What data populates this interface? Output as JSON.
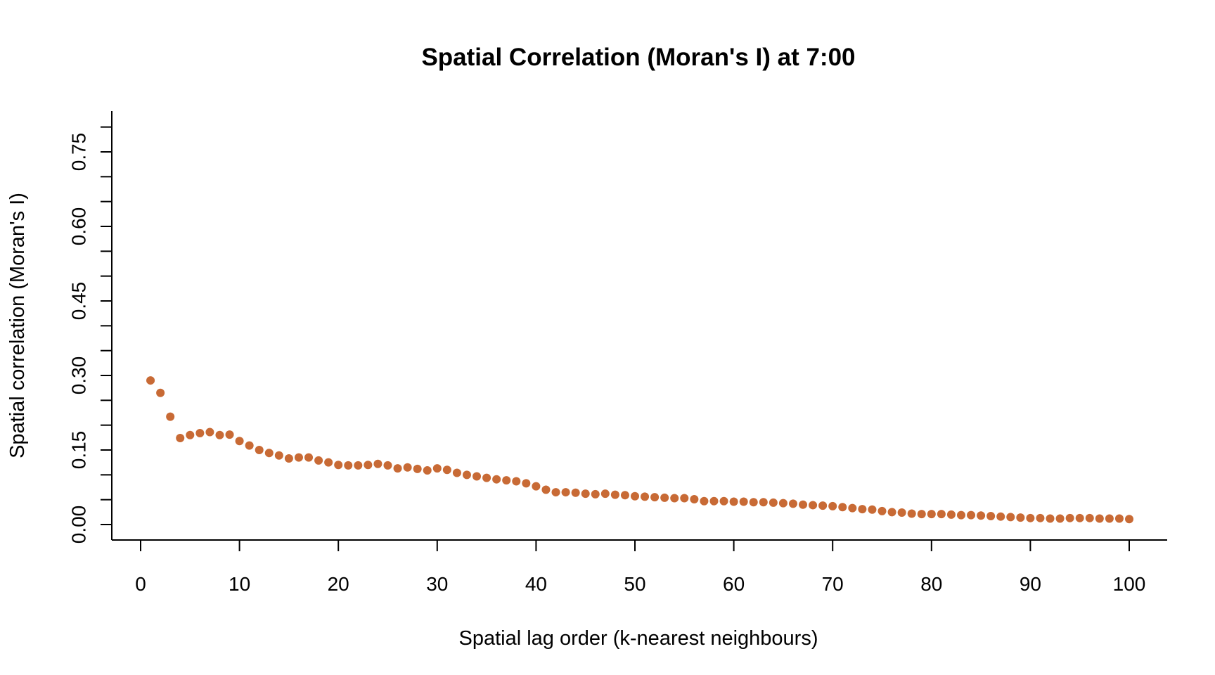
{
  "chart_data": {
    "type": "scatter",
    "title": "Spatial Correlation (Moran's I) at 7:00",
    "xlabel": "Spatial lag order (k-nearest neighbours)",
    "ylabel": "Spatial correlation (Moran's I)",
    "xlim": [
      0,
      100
    ],
    "ylim": [
      0.0,
      0.84
    ],
    "x_ticks": [
      0,
      10,
      20,
      30,
      40,
      50,
      60,
      70,
      80,
      90,
      100
    ],
    "x_tick_labels": [
      "0",
      "10",
      "20",
      "30",
      "40",
      "50",
      "60",
      "70",
      "80",
      "90",
      "100"
    ],
    "y_ticks_major": [
      0.0,
      0.15,
      0.3,
      0.45,
      0.6,
      0.75
    ],
    "y_tick_labels": [
      "0.00",
      "0.15",
      "0.30",
      "0.45",
      "0.60",
      "0.75"
    ],
    "y_ticks_minor": [
      0.05,
      0.1,
      0.2,
      0.25,
      0.35,
      0.4,
      0.5,
      0.55,
      0.65,
      0.7,
      0.8
    ],
    "grid": false,
    "point_color": "#C86A35",
    "series": [
      {
        "name": "Moran's I",
        "x": [
          1,
          2,
          3,
          4,
          5,
          6,
          7,
          8,
          9,
          10,
          11,
          12,
          13,
          14,
          15,
          16,
          17,
          18,
          19,
          20,
          21,
          22,
          23,
          24,
          25,
          26,
          27,
          28,
          29,
          30,
          31,
          32,
          33,
          34,
          35,
          36,
          37,
          38,
          39,
          40,
          41,
          42,
          43,
          44,
          45,
          46,
          47,
          48,
          49,
          50,
          51,
          52,
          53,
          54,
          55,
          56,
          57,
          58,
          59,
          60,
          61,
          62,
          63,
          64,
          65,
          66,
          67,
          68,
          69,
          70,
          71,
          72,
          73,
          74,
          75,
          76,
          77,
          78,
          79,
          80,
          81,
          82,
          83,
          84,
          85,
          86,
          87,
          88,
          89,
          90,
          91,
          92,
          93,
          94,
          95,
          96,
          97,
          98,
          99,
          100
        ],
        "values": [
          0.29,
          0.265,
          0.217,
          0.174,
          0.18,
          0.184,
          0.186,
          0.18,
          0.181,
          0.168,
          0.159,
          0.15,
          0.144,
          0.139,
          0.133,
          0.135,
          0.135,
          0.129,
          0.125,
          0.12,
          0.119,
          0.119,
          0.12,
          0.122,
          0.119,
          0.113,
          0.115,
          0.112,
          0.109,
          0.113,
          0.11,
          0.104,
          0.1,
          0.097,
          0.094,
          0.091,
          0.089,
          0.087,
          0.083,
          0.077,
          0.07,
          0.065,
          0.065,
          0.064,
          0.062,
          0.061,
          0.062,
          0.06,
          0.059,
          0.057,
          0.056,
          0.055,
          0.054,
          0.053,
          0.053,
          0.051,
          0.047,
          0.047,
          0.047,
          0.046,
          0.046,
          0.045,
          0.045,
          0.044,
          0.043,
          0.042,
          0.04,
          0.039,
          0.038,
          0.037,
          0.035,
          0.033,
          0.031,
          0.03,
          0.027,
          0.025,
          0.024,
          0.022,
          0.021,
          0.021,
          0.021,
          0.02,
          0.019,
          0.019,
          0.018,
          0.017,
          0.016,
          0.015,
          0.014,
          0.013,
          0.013,
          0.012,
          0.012,
          0.013,
          0.013,
          0.013,
          0.012,
          0.012,
          0.012,
          0.011
        ]
      }
    ]
  }
}
